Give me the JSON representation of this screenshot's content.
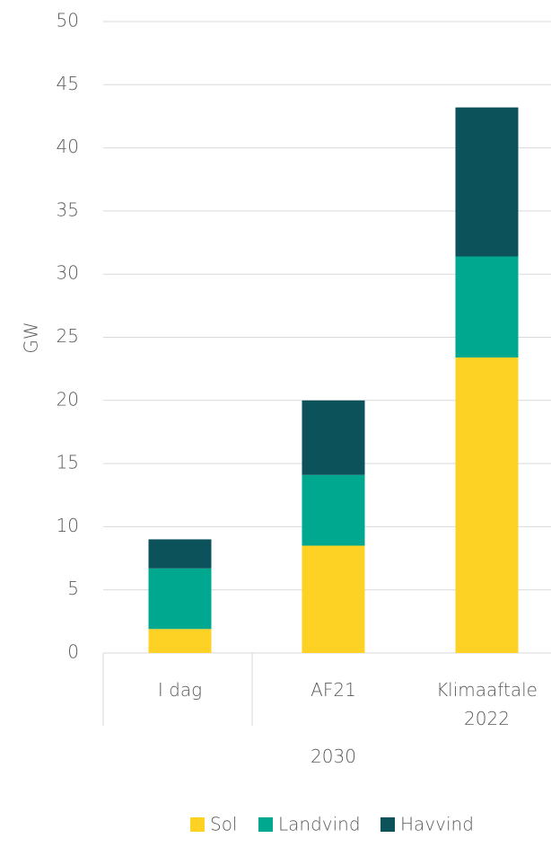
{
  "chart_data": {
    "type": "stacked_bar",
    "y_label": "GW",
    "categories": [
      "I dag",
      "AF21",
      "Klimaaftale 2022"
    ],
    "x_group_label": "2030",
    "series": [
      {
        "name": "Sol",
        "color": "#fdd225",
        "values": [
          1.9,
          8.5,
          23.4
        ]
      },
      {
        "name": "Landvind",
        "color": "#00a88f",
        "values": [
          4.8,
          5.6,
          8.0
        ]
      },
      {
        "name": "Havvind",
        "color": "#0b525b",
        "values": [
          2.3,
          5.9,
          11.8
        ]
      }
    ],
    "ylim": [
      0,
      50
    ],
    "yticks": [
      0,
      5,
      10,
      15,
      20,
      25,
      30,
      35,
      40,
      45,
      50
    ],
    "grid": true,
    "legend": "bottom"
  }
}
